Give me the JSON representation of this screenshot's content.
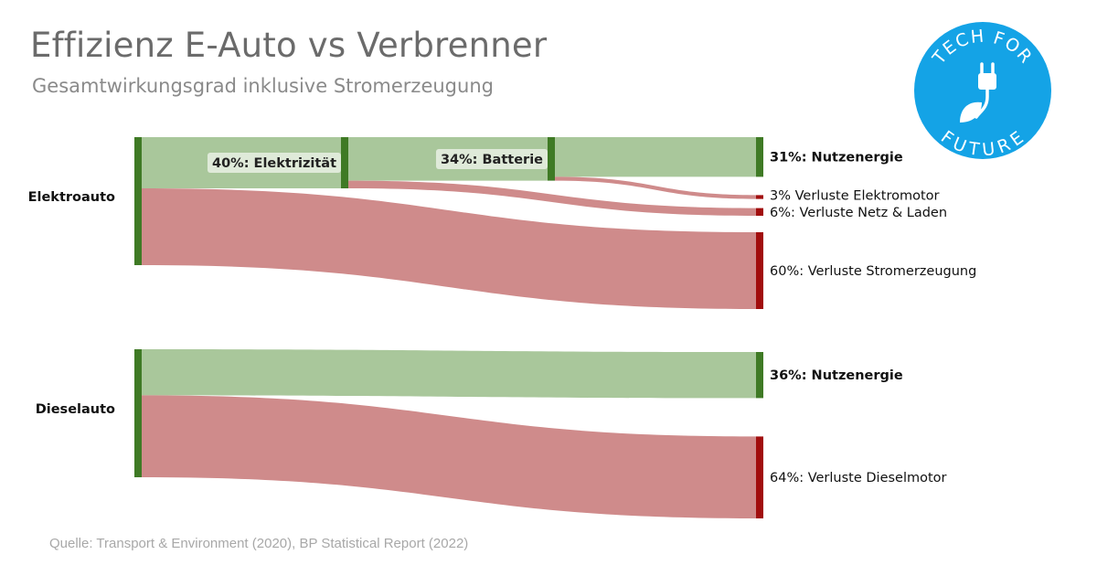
{
  "header": {
    "title": "Effizienz E-Auto vs Verbrenner",
    "subtitle": "Gesamtwirkungsgrad inklusive Stromerzeugung"
  },
  "footer": {
    "source": "Quelle: Transport & Environment (2020), BP Statistical Report (2022)"
  },
  "logo": {
    "line1": "TECH FOR",
    "line2": "FUTURE",
    "color": "#14a3e6",
    "icon": "plug-leaf-icon"
  },
  "colors": {
    "gain_flow": "#a9c79b",
    "loss_flow": "#cf8b8b",
    "gain_node": "#3f7a25",
    "loss_node": "#a10d0d"
  },
  "chart_data": {
    "type": "sankey",
    "unit": "%",
    "sources": [
      {
        "name": "Elektroauto",
        "value": 100,
        "stages": [
          {
            "label": "40%: Elektrizität",
            "value": 40
          },
          {
            "label": "34%: Batterie",
            "value": 34
          }
        ],
        "outputs": [
          {
            "label": "31%: Nutzenergie",
            "value": 31,
            "kind": "useful",
            "from": "34%: Batterie"
          },
          {
            "label": "3% Verluste Elektromotor",
            "value": 3,
            "kind": "loss",
            "from": "34%: Batterie"
          },
          {
            "label": "6%: Verluste Netz & Laden",
            "value": 6,
            "kind": "loss",
            "from": "40%: Elektrizität"
          },
          {
            "label": "60%: Verluste Stromerzeugung",
            "value": 60,
            "kind": "loss",
            "from": "Elektroauto"
          }
        ]
      },
      {
        "name": "Dieselauto",
        "value": 100,
        "stages": [],
        "outputs": [
          {
            "label": "36%: Nutzenergie",
            "value": 36,
            "kind": "useful",
            "from": "Dieselauto"
          },
          {
            "label": "64%: Verluste Dieselmotor",
            "value": 64,
            "kind": "loss",
            "from": "Dieselauto"
          }
        ]
      }
    ]
  }
}
